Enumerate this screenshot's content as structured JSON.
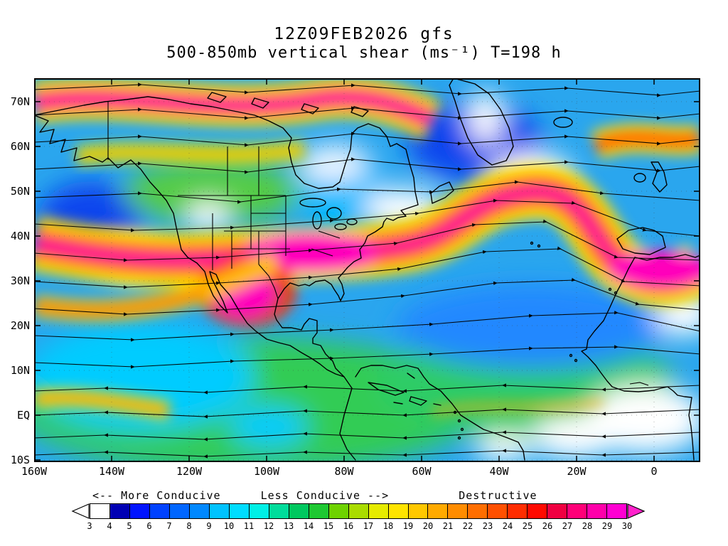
{
  "title": {
    "line1": "12Z09FEB2026 gfs",
    "line2": "500-850mb vertical shear (ms⁻¹) T=198 h"
  },
  "axes": {
    "y_ticks": [
      "70N",
      "60N",
      "50N",
      "40N",
      "30N",
      "20N",
      "10N",
      "EQ",
      "10S"
    ],
    "x_ticks": [
      "160W",
      "140W",
      "120W",
      "100W",
      "80W",
      "60W",
      "40W",
      "20W",
      "0"
    ]
  },
  "legend": {
    "more_conducive": "<--  More Conducive",
    "less_conducive": "Less Conducive  -->",
    "destructive": "Destructive"
  },
  "colorbar": {
    "tick_labels": [
      "3",
      "4",
      "5",
      "6",
      "7",
      "8",
      "9",
      "10",
      "11",
      "12",
      "13",
      "14",
      "15",
      "16",
      "17",
      "18",
      "19",
      "20",
      "21",
      "22",
      "23",
      "24",
      "25",
      "26",
      "27",
      "28",
      "29",
      "30"
    ],
    "segment_colors": [
      "#ffffff",
      "#0000b4",
      "#0014ff",
      "#0042ff",
      "#0066ff",
      "#0088ff",
      "#00c3ff",
      "#00ddff",
      "#00f0e6",
      "#00dc9b",
      "#00c85f",
      "#1ec832",
      "#6ed200",
      "#aadc00",
      "#e6eb00",
      "#ffe400",
      "#ffc800",
      "#ffaa00",
      "#ff8c00",
      "#ff6e00",
      "#ff5000",
      "#ff2d00",
      "#ff0a00",
      "#f00041",
      "#ff0078",
      "#ff00aa",
      "#ff00d2"
    ],
    "left_arrow_color": "#ffffff",
    "right_arrow_color": "#ff22cc"
  },
  "chart_data": {
    "type": "heatmap",
    "title": "12Z09FEB2026 gfs — 500-850mb vertical shear (ms⁻¹) T=198 h",
    "model": "gfs",
    "init_time": "12Z09FEB2026",
    "forecast_hour_label": "T=198 h",
    "variable": "500-850mb vertical shear",
    "units": "ms⁻¹",
    "x_axis": {
      "label": "longitude",
      "ticks": [
        "160W",
        "140W",
        "120W",
        "100W",
        "80W",
        "60W",
        "40W",
        "20W",
        "0"
      ]
    },
    "y_axis": {
      "label": "latitude",
      "ticks": [
        "70N",
        "60N",
        "50N",
        "40N",
        "30N",
        "20N",
        "10N",
        "EQ",
        "10S"
      ]
    },
    "colorbar_levels": [
      3,
      4,
      5,
      6,
      7,
      8,
      9,
      10,
      11,
      12,
      13,
      14,
      15,
      16,
      17,
      18,
      19,
      20,
      21,
      22,
      23,
      24,
      25,
      26,
      27,
      28,
      29,
      30
    ],
    "colorbar_colors": [
      "#ffffff",
      "#0000b4",
      "#0014ff",
      "#0042ff",
      "#0066ff",
      "#0088ff",
      "#00c3ff",
      "#00ddff",
      "#00f0e6",
      "#00dc9b",
      "#00c85f",
      "#1ec832",
      "#6ed200",
      "#aadc00",
      "#e6eb00",
      "#ffe400",
      "#ffc800",
      "#ffaa00",
      "#ff8c00",
      "#ff6e00",
      "#ff5000",
      "#ff2d00",
      "#ff0a00",
      "#f00041",
      "#ff0078",
      "#ff00aa",
      "#ff00d2"
    ],
    "annotations": [
      "<--  More Conducive",
      "Less Conducive  -->",
      "Destructive"
    ],
    "overlays": [
      "streamlines with arrowheads",
      "coastlines and political borders"
    ],
    "notable_features": [
      "polar jet band of 25-30+ ms⁻¹ shear along ~70N from 160W to ~90W",
      "subtropical jet band of 24-30+ ms⁻¹ shear across the U.S. near 35-40N, ridging to ~50N over the central Atlantic, dipping to ~30N near 20W and into northwest Africa",
      "magenta 30+ ms⁻¹ shear maxima over the central U.S., southwest U.S./Mexico and near northwest Africa",
      "low shear (3-10 ms⁻¹, white/blue) across much of the deep tropics and subtropical oceans"
    ]
  }
}
